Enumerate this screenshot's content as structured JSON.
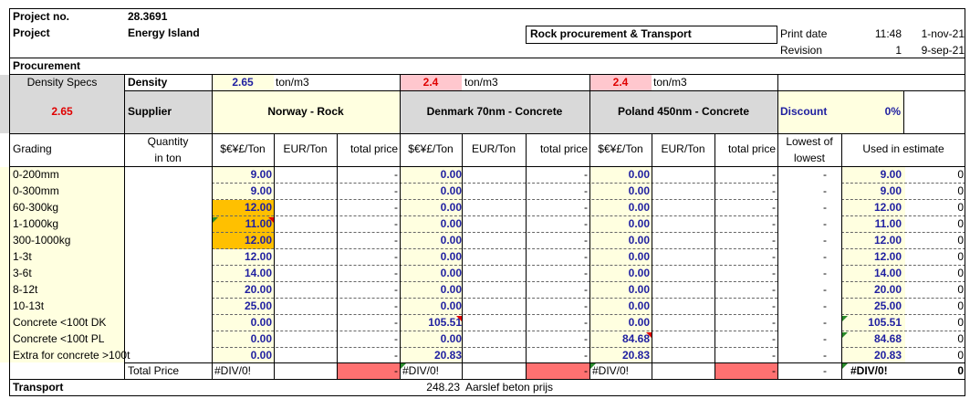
{
  "header": {
    "project_no_label": "Project no.",
    "project_no_value": "28.3691",
    "project_label": "Project",
    "project_value": "Energy Island",
    "title_box": "Rock procurement & Transport",
    "print_date_label": "Print date",
    "print_time": "11:48",
    "print_date": "1-nov-21",
    "revision_label": "Revision",
    "revision_value": "1",
    "revision_date": "9-sep-21"
  },
  "procurement": {
    "section_label": "Procurement",
    "density_specs_label": "Density Specs",
    "density_specs_value": "2.65",
    "density_label": "Density",
    "supplier_label": "Supplier",
    "suppliers": [
      {
        "density": "2.65",
        "unit": "ton/m3",
        "name": "Norway - Rock"
      },
      {
        "density": "2.4",
        "unit": "ton/m3",
        "name": "Denmark 70nm - Concrete"
      },
      {
        "density": "2.4",
        "unit": "ton/m3",
        "name": "Poland 450nm - Concrete"
      }
    ],
    "discount_label": "Discount",
    "discount_value": "0%",
    "col_headers": {
      "grading": "Grading",
      "quantity_line1": "Quantity",
      "quantity_line2": "in ton",
      "price": "$€¥£/Ton",
      "eur": "EUR/Ton",
      "total": "total price",
      "lowest_line1": "Lowest of",
      "lowest_line2": "lowest",
      "used": "Used in estimate"
    },
    "rows": [
      {
        "grading": "0-200mm",
        "s1": "9.00",
        "s2": "0.00",
        "s3": "0.00",
        "t1": "-",
        "t2": "-",
        "t3": "-",
        "low": "-",
        "used": "9.00",
        "used_total": "0"
      },
      {
        "grading": "0-300mm",
        "s1": "9.00",
        "s2": "0.00",
        "s3": "0.00",
        "t1": "-",
        "t2": "-",
        "t3": "-",
        "low": "-",
        "used": "9.00",
        "used_total": "0"
      },
      {
        "grading": "60-300kg",
        "s1": "12.00",
        "s2": "0.00",
        "s3": "0.00",
        "t1": "-",
        "t2": "-",
        "t3": "-",
        "low": "-",
        "used": "12.00",
        "used_total": "0"
      },
      {
        "grading": "1-1000kg",
        "s1": "11.00",
        "s2": "0.00",
        "s3": "0.00",
        "t1": "-",
        "t2": "-",
        "t3": "-",
        "low": "-",
        "used": "11.00",
        "used_total": "0"
      },
      {
        "grading": "300-1000kg",
        "s1": "12.00",
        "s2": "0.00",
        "s3": "0.00",
        "t1": "-",
        "t2": "-",
        "t3": "-",
        "low": "-",
        "used": "12.00",
        "used_total": "0"
      },
      {
        "grading": "1-3t",
        "s1": "12.00",
        "s2": "0.00",
        "s3": "0.00",
        "t1": "-",
        "t2": "-",
        "t3": "-",
        "low": "-",
        "used": "12.00",
        "used_total": "0"
      },
      {
        "grading": "3-6t",
        "s1": "14.00",
        "s2": "0.00",
        "s3": "0.00",
        "t1": "-",
        "t2": "-",
        "t3": "-",
        "low": "-",
        "used": "14.00",
        "used_total": "0"
      },
      {
        "grading": "8-12t",
        "s1": "20.00",
        "s2": "0.00",
        "s3": "0.00",
        "t1": "-",
        "t2": "-",
        "t3": "-",
        "low": "-",
        "used": "20.00",
        "used_total": "0"
      },
      {
        "grading": "10-13t",
        "s1": "25.00",
        "s2": "0.00",
        "s3": "0.00",
        "t1": "-",
        "t2": "-",
        "t3": "-",
        "low": "-",
        "used": "25.00",
        "used_total": "0"
      },
      {
        "grading": "Concrete <100t DK",
        "s1": "0.00",
        "s2": "105.51",
        "s3": "0.00",
        "t1": "-",
        "t2": "-",
        "t3": "-",
        "low": "-",
        "used": "105.51",
        "used_total": "0"
      },
      {
        "grading": "Concrete <100t PL",
        "s1": "0.00",
        "s2": "0.00",
        "s3": "84.68",
        "t1": "-",
        "t2": "-",
        "t3": "-",
        "low": "-",
        "used": "84.68",
        "used_total": "0"
      },
      {
        "grading": "Extra for concrete >100t",
        "s1": "0.00",
        "s2": "20.83",
        "s3": "20.83",
        "t1": "-",
        "t2": "-",
        "t3": "-",
        "low": "-",
        "used": "20.83",
        "used_total": "0"
      }
    ],
    "total_row": {
      "label": "Total Price",
      "s1": "#DIV/0!",
      "s2": "#DIV/0!",
      "s3": "#DIV/0!",
      "t1": "-",
      "t2": "-",
      "t3": "-",
      "low": "-",
      "used": "#DIV/0!",
      "used_total": "0"
    }
  },
  "transport": {
    "section_label": "Transport",
    "value": "248.23",
    "note": "Aarslef beton prijs"
  },
  "colors": {
    "input_yellow": "#ffffe0",
    "orange_highlight": "#ffc000",
    "pink_density": "#ffc7ce",
    "red_total": "#ff7171",
    "grey_supplier": "#d9d9d9",
    "blue_value": "#1f1fa0",
    "red_value": "#e00000"
  }
}
